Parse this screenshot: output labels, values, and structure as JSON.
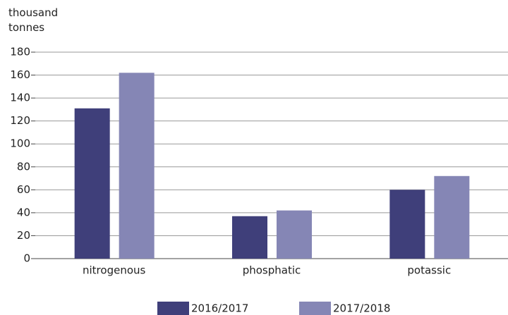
{
  "chart_data": {
    "type": "bar",
    "y_label": "thousand tonnes",
    "categories": [
      "nitrogenous",
      "phosphatic",
      "potassic"
    ],
    "series": [
      {
        "name": "2016/2017",
        "color": "#3f3f7a",
        "values": [
          131,
          37,
          60
        ]
      },
      {
        "name": "2017/2018",
        "color": "#8586b5",
        "values": [
          162,
          42,
          72
        ]
      }
    ],
    "ylim": [
      0,
      180
    ],
    "yticks": [
      0,
      20,
      40,
      60,
      80,
      100,
      120,
      140,
      160,
      180
    ],
    "grid": true,
    "legend": "bottom"
  }
}
